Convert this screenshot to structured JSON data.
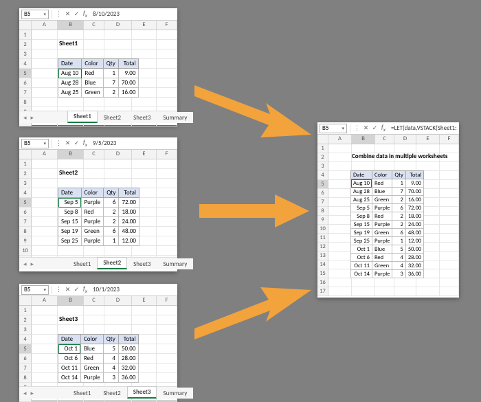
{
  "bg": "#808080",
  "accent": "#107c41",
  "arrow_color": "#f2a33c",
  "headers": [
    "Date",
    "Color",
    "Qty",
    "Total"
  ],
  "colLetters": [
    "A",
    "B",
    "C",
    "D",
    "E",
    "F"
  ],
  "sheets": {
    "s1": {
      "title": "Sheet1",
      "cellRef": "B5",
      "fx": "8/10/2023",
      "rows": [
        {
          "date": "Aug 10",
          "color": "Red",
          "qty": "1",
          "total": "9.00"
        },
        {
          "date": "Aug 28",
          "color": "Blue",
          "qty": "7",
          "total": "70.00"
        },
        {
          "date": "Aug 25",
          "color": "Green",
          "qty": "2",
          "total": "16.00"
        }
      ],
      "tabs": [
        "Sheet1",
        "Sheet2",
        "Sheet3",
        "Summary"
      ],
      "activeTab": 0
    },
    "s2": {
      "title": "Sheet2",
      "cellRef": "B5",
      "fx": "9/5/2023",
      "rows": [
        {
          "date": "Sep 5",
          "color": "Purple",
          "qty": "6",
          "total": "72.00"
        },
        {
          "date": "Sep 8",
          "color": "Red",
          "qty": "2",
          "total": "18.00"
        },
        {
          "date": "Sep 15",
          "color": "Purple",
          "qty": "2",
          "total": "24.00"
        },
        {
          "date": "Sep 19",
          "color": "Green",
          "qty": "6",
          "total": "48.00"
        },
        {
          "date": "Sep 25",
          "color": "Purple",
          "qty": "1",
          "total": "12.00"
        }
      ],
      "tabs": [
        "Sheet1",
        "Sheet2",
        "Sheet3",
        "Summary"
      ],
      "activeTab": 1
    },
    "s3": {
      "title": "Sheet3",
      "cellRef": "B5",
      "fx": "10/1/2023",
      "rows": [
        {
          "date": "Oct 1",
          "color": "Blue",
          "qty": "5",
          "total": "50.00"
        },
        {
          "date": "Oct 6",
          "color": "Red",
          "qty": "4",
          "total": "28.00"
        },
        {
          "date": "Oct 11",
          "color": "Green",
          "qty": "4",
          "total": "32.00"
        },
        {
          "date": "Oct 14",
          "color": "Purple",
          "qty": "3",
          "total": "36.00"
        }
      ],
      "tabs": [
        "Sheet1",
        "Sheet2",
        "Sheet3",
        "Summary"
      ],
      "activeTab": 2
    },
    "summary": {
      "title": "Combine data in multiple worksheets",
      "cellRef": "B5",
      "fx": "=LET(data,VSTACK(Sheet1:Shee",
      "rows": [
        {
          "date": "Aug 10",
          "color": "Red",
          "qty": "1",
          "total": "9.00"
        },
        {
          "date": "Aug 28",
          "color": "Blue",
          "qty": "7",
          "total": "70.00"
        },
        {
          "date": "Aug 25",
          "color": "Green",
          "qty": "2",
          "total": "16.00"
        },
        {
          "date": "Sep 5",
          "color": "Purple",
          "qty": "6",
          "total": "72.00"
        },
        {
          "date": "Sep 8",
          "color": "Red",
          "qty": "2",
          "total": "18.00"
        },
        {
          "date": "Sep 15",
          "color": "Purple",
          "qty": "2",
          "total": "24.00"
        },
        {
          "date": "Sep 19",
          "color": "Green",
          "qty": "6",
          "total": "48.00"
        },
        {
          "date": "Sep 25",
          "color": "Purple",
          "qty": "1",
          "total": "12.00"
        },
        {
          "date": "Oct 1",
          "color": "Blue",
          "qty": "5",
          "total": "50.00"
        },
        {
          "date": "Oct 6",
          "color": "Red",
          "qty": "4",
          "total": "28.00"
        },
        {
          "date": "Oct 11",
          "color": "Green",
          "qty": "4",
          "total": "32.00"
        },
        {
          "date": "Oct 14",
          "color": "Purple",
          "qty": "3",
          "total": "36.00"
        }
      ]
    }
  }
}
